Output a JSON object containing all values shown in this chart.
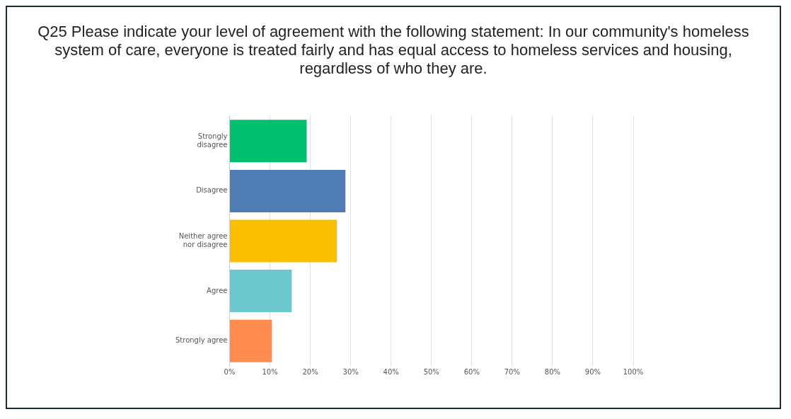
{
  "chart_data": {
    "type": "bar",
    "orientation": "horizontal",
    "title": "Q25 Please indicate your level of agreement with the following statement: In our community's homeless system of care, everyone is treated fairly and has equal access to homeless services and housing, regardless of who they are.",
    "categories": [
      "Strongly disagree",
      "Disagree",
      "Neither agree nor disagree",
      "Agree",
      "Strongly agree"
    ],
    "values": [
      19.1,
      28.7,
      26.6,
      15.4,
      10.5
    ],
    "colors": [
      "#00bf6f",
      "#507cb6",
      "#f9be00",
      "#6bc8cd",
      "#ff8b4f"
    ],
    "xlim": [
      0,
      100
    ],
    "xticks": [
      {
        "value": 0,
        "label": "0%"
      },
      {
        "value": 10,
        "label": "10%"
      },
      {
        "value": 20,
        "label": "20%"
      },
      {
        "value": 30,
        "label": "30%"
      },
      {
        "value": 40,
        "label": "40%"
      },
      {
        "value": 50,
        "label": "50%"
      },
      {
        "value": 60,
        "label": "60%"
      },
      {
        "value": 70,
        "label": "70%"
      },
      {
        "value": 80,
        "label": "80%"
      },
      {
        "value": 90,
        "label": "90%"
      },
      {
        "value": 100,
        "label": "100%"
      }
    ],
    "grid": "x"
  }
}
